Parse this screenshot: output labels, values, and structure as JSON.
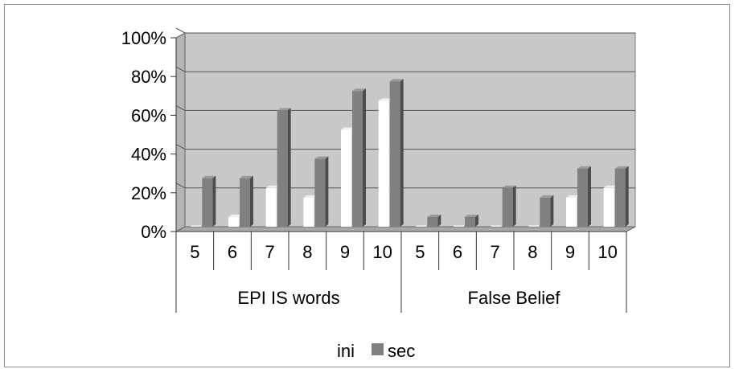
{
  "chart_data": {
    "type": "bar",
    "groups": [
      "EPI IS words",
      "False Belief"
    ],
    "ages": [
      "5",
      "6",
      "7",
      "8",
      "9",
      "10"
    ],
    "categories": [
      "EPI IS words 5",
      "EPI IS words 6",
      "EPI IS words 7",
      "EPI IS words 8",
      "EPI IS words 9",
      "EPI IS words 10",
      "False Belief 5",
      "False Belief 6",
      "False Belief 7",
      "False Belief 8",
      "False Belief 9",
      "False Belief 10"
    ],
    "series": [
      {
        "name": "ini",
        "values": [
          0,
          5,
          20,
          15,
          50,
          65,
          0,
          0,
          0,
          0,
          15,
          20
        ]
      },
      {
        "name": "sec",
        "values": [
          25,
          25,
          60,
          35,
          70,
          75,
          5,
          5,
          20,
          15,
          30,
          30
        ]
      }
    ],
    "ylim": [
      0,
      100
    ],
    "yticks": [
      "0%",
      "20%",
      "40%",
      "60%",
      "80%",
      "100%"
    ],
    "grid": true,
    "legend_position": "bottom",
    "title": "",
    "xlabel": "",
    "ylabel": ""
  },
  "colors": {
    "ini": "#ffffff",
    "sec": "#808080",
    "wall": "#c8c8c8",
    "floor": "#a6a6a6"
  }
}
